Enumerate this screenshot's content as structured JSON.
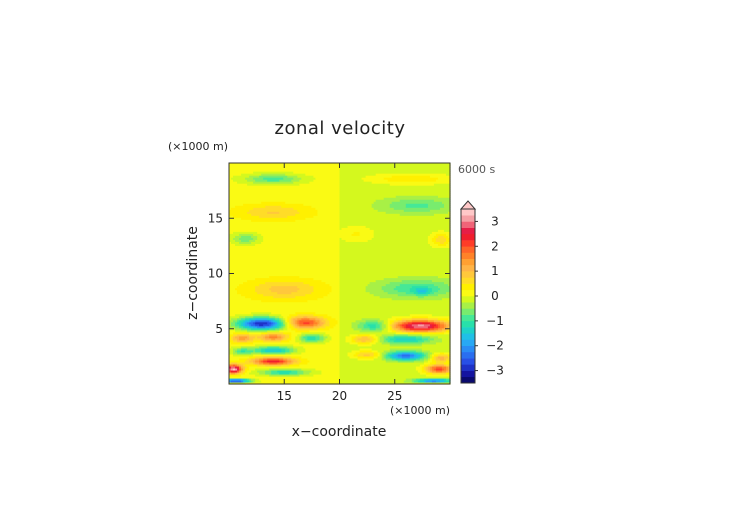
{
  "chart_data": {
    "type": "heatmap",
    "title": "zonal velocity",
    "time_label": "6000 s",
    "xlabel": "x−coordinate",
    "ylabel": "z−coordinate",
    "x_unit": "(×1000 m)",
    "y_unit": "(×1000 m)",
    "xlim": [
      10,
      30
    ],
    "ylim": [
      0,
      20
    ],
    "x_ticks": [
      15,
      20,
      25
    ],
    "y_ticks": [
      5,
      10,
      15
    ],
    "colorbar": {
      "levels": [
        -3.5,
        -3.25,
        -3.0,
        -2.75,
        -2.5,
        -2.25,
        -2.0,
        -1.75,
        -1.5,
        -1.25,
        -1.0,
        -0.75,
        -0.5,
        -0.25,
        0.0,
        0.25,
        0.5,
        0.75,
        1.0,
        1.25,
        1.5,
        1.75,
        2.0,
        2.25,
        2.5,
        2.75,
        3.0,
        3.25,
        3.5
      ],
      "colors": [
        "#0a0a6e",
        "#1414a0",
        "#1e32c8",
        "#2850e6",
        "#2a6ef0",
        "#2a8cf5",
        "#28a8f5",
        "#20c0e6",
        "#1ed2c8",
        "#28e0aa",
        "#46e896",
        "#78ec6e",
        "#a8f046",
        "#d4f81e",
        "#fafa14",
        "#fff000",
        "#ffdc28",
        "#ffc83c",
        "#ffb446",
        "#ffa032",
        "#ff8228",
        "#ff6428",
        "#ff3c28",
        "#f01e2d",
        "#e61e46",
        "#f06478",
        "#f5a0a5",
        "#ffc8c8"
      ],
      "tick_values": [
        -3,
        -2,
        -1,
        0,
        1,
        2,
        3
      ],
      "tick_labels": [
        "−3",
        "−2",
        "−1",
        "0",
        "1",
        "2",
        "3"
      ],
      "extend": "max"
    },
    "features": [
      {
        "x": 14,
        "z": 18.6,
        "sx": 2.6,
        "sz": 0.45,
        "amp": -1.0
      },
      {
        "x": 26.5,
        "z": 18.6,
        "sx": 3.5,
        "sz": 0.45,
        "amp": 0.6
      },
      {
        "x": 14,
        "z": 15.6,
        "sx": 3.2,
        "sz": 0.7,
        "amp": 0.65
      },
      {
        "x": 27,
        "z": 16.2,
        "sx": 3.2,
        "sz": 0.7,
        "amp": -0.7
      },
      {
        "x": 11.5,
        "z": 13.2,
        "sx": 1.2,
        "sz": 0.5,
        "amp": -0.8
      },
      {
        "x": 21.5,
        "z": 13.6,
        "sx": 1.5,
        "sz": 0.7,
        "amp": 0.4
      },
      {
        "x": 29.2,
        "z": 13.1,
        "sx": 0.9,
        "sz": 0.6,
        "amp": 0.8
      },
      {
        "x": 15,
        "z": 8.6,
        "sx": 3.3,
        "sz": 0.9,
        "amp": 0.75
      },
      {
        "x": 27,
        "z": 8.7,
        "sx": 3.4,
        "sz": 0.8,
        "amp": -0.9
      },
      {
        "x": 27.5,
        "z": 8.4,
        "sx": 0.7,
        "sz": 0.3,
        "amp": -0.8
      },
      {
        "x": 13,
        "z": 5.5,
        "sx": 2.2,
        "sz": 0.55,
        "amp": -3.1
      },
      {
        "x": 16.8,
        "z": 5.6,
        "sx": 1.8,
        "sz": 0.55,
        "amp": 2.1
      },
      {
        "x": 27.3,
        "z": 5.3,
        "sx": 2.6,
        "sz": 0.55,
        "amp": 3.2
      },
      {
        "x": 23.2,
        "z": 5.3,
        "sx": 1.5,
        "sz": 0.5,
        "amp": -1.2
      },
      {
        "x": 11.2,
        "z": 4.2,
        "sx": 1.0,
        "sz": 0.4,
        "amp": 1.3
      },
      {
        "x": 14,
        "z": 4.3,
        "sx": 1.3,
        "sz": 0.4,
        "amp": 1.5
      },
      {
        "x": 17.5,
        "z": 4.2,
        "sx": 1.2,
        "sz": 0.4,
        "amp": -1.3
      },
      {
        "x": 26,
        "z": 4.1,
        "sx": 2.2,
        "sz": 0.4,
        "amp": -1.4
      },
      {
        "x": 22.3,
        "z": 4.1,
        "sx": 1.2,
        "sz": 0.4,
        "amp": 1.2
      },
      {
        "x": 14,
        "z": 3.1,
        "sx": 1.8,
        "sz": 0.35,
        "amp": -1.7
      },
      {
        "x": 11.2,
        "z": 3.0,
        "sx": 0.9,
        "sz": 0.35,
        "amp": -1.0
      },
      {
        "x": 26,
        "z": 2.6,
        "sx": 1.7,
        "sz": 0.4,
        "amp": -2.3
      },
      {
        "x": 22.5,
        "z": 2.7,
        "sx": 1.2,
        "sz": 0.35,
        "amp": 1.0
      },
      {
        "x": 14,
        "z": 2.1,
        "sx": 1.9,
        "sz": 0.35,
        "amp": 2.3
      },
      {
        "x": 29.2,
        "z": 2.4,
        "sx": 0.9,
        "sz": 0.4,
        "amp": 1.3
      },
      {
        "x": 10.4,
        "z": 1.4,
        "sx": 0.8,
        "sz": 0.4,
        "amp": 3.2
      },
      {
        "x": 15,
        "z": 1.1,
        "sx": 2.2,
        "sz": 0.3,
        "amp": -1.3
      },
      {
        "x": 29,
        "z": 1.4,
        "sx": 1.2,
        "sz": 0.4,
        "amp": 2.3
      },
      {
        "x": 10.6,
        "z": 0.35,
        "sx": 1.3,
        "sz": 0.15,
        "amp": -3.4
      },
      {
        "x": 28.5,
        "z": 0.35,
        "sx": 1.6,
        "sz": 0.15,
        "amp": -2.5
      }
    ]
  }
}
